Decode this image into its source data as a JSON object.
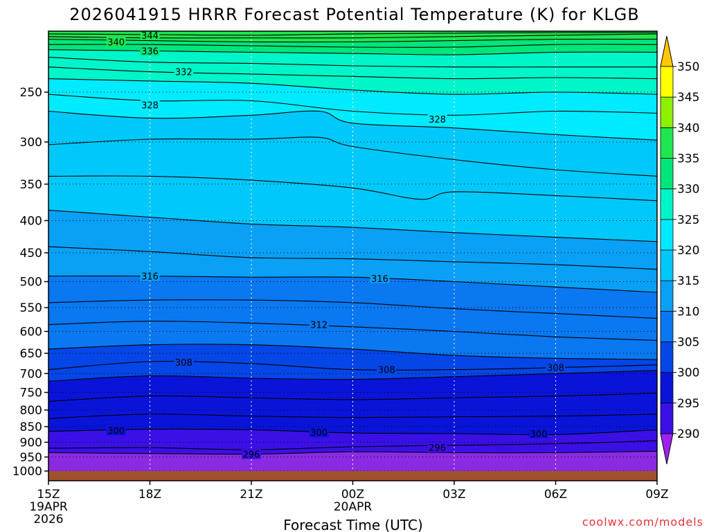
{
  "chart_data": {
    "type": "heatmap",
    "title": "2026041915 HRRR Forecast Potential Temperature (K) for KLGB",
    "xlabel": "Forecast Time (UTC)",
    "ylabel": "",
    "x_ticks": [
      {
        "hour": 0,
        "label": "15Z",
        "date": "19APR",
        "year": "2026"
      },
      {
        "hour": 3,
        "label": "18Z",
        "date": "",
        "year": ""
      },
      {
        "hour": 6,
        "label": "21Z",
        "date": "",
        "year": ""
      },
      {
        "hour": 9,
        "label": "00Z",
        "date": "20APR",
        "year": ""
      },
      {
        "hour": 12,
        "label": "03Z",
        "date": "",
        "year": ""
      },
      {
        "hour": 15,
        "label": "06Z",
        "date": "",
        "year": ""
      },
      {
        "hour": 18,
        "label": "09Z",
        "date": "",
        "year": ""
      }
    ],
    "xlim": [
      0,
      18
    ],
    "y_ticks": [
      {
        "p": 250,
        "label": "250"
      },
      {
        "p": 300,
        "label": "300"
      },
      {
        "p": 350,
        "label": "350"
      },
      {
        "p": 400,
        "label": "400"
      },
      {
        "p": 450,
        "label": "450"
      },
      {
        "p": 500,
        "label": "500"
      },
      {
        "p": 550,
        "label": "550"
      },
      {
        "p": 600,
        "label": "600"
      },
      {
        "p": 650,
        "label": "650"
      },
      {
        "p": 700,
        "label": "700"
      },
      {
        "p": 750,
        "label": "750"
      },
      {
        "p": 800,
        "label": "800"
      },
      {
        "p": 850,
        "label": "850"
      },
      {
        "p": 900,
        "label": "900"
      },
      {
        "p": 950,
        "label": "950"
      },
      {
        "p": 1000,
        "label": "1000"
      }
    ],
    "ylim": [
      200,
      1000
    ],
    "y_scale": "log (pressure, inverted)",
    "colorbar": {
      "levels": [
        290,
        295,
        300,
        305,
        310,
        315,
        320,
        325,
        330,
        335,
        340,
        345,
        350
      ],
      "colors": [
        "#8a2be2",
        "#3a10e6",
        "#0a14d8",
        "#0546e6",
        "#0a78f0",
        "#0aa0f5",
        "#00c8fa",
        "#00ebff",
        "#00f5c8",
        "#00e67a",
        "#1ee650",
        "#8cf000",
        "#ffff00"
      ],
      "over_color": "#ffc800",
      "under_color": "#a020f0"
    },
    "series": [
      {
        "value": 296,
        "points": [
          [
            0,
            935
          ],
          [
            3,
            938
          ],
          [
            6,
            940
          ],
          [
            9,
            932
          ],
          [
            12,
            935
          ],
          [
            15,
            935
          ],
          [
            18,
            930
          ]
        ]
      },
      {
        "value": 298,
        "points": [
          [
            0,
            920
          ],
          [
            3,
            918
          ],
          [
            6,
            925
          ],
          [
            9,
            915
          ],
          [
            12,
            910
          ],
          [
            15,
            905
          ],
          [
            18,
            895
          ]
        ]
      },
      {
        "value": 300,
        "points": [
          [
            0,
            865
          ],
          [
            3,
            858
          ],
          [
            6,
            860
          ],
          [
            9,
            870
          ],
          [
            12,
            872
          ],
          [
            15,
            875
          ],
          [
            18,
            860
          ]
        ]
      },
      {
        "value": 302,
        "points": [
          [
            0,
            825
          ],
          [
            3,
            812
          ],
          [
            6,
            818
          ],
          [
            9,
            822
          ],
          [
            12,
            820
          ],
          [
            15,
            818
          ],
          [
            18,
            812
          ]
        ]
      },
      {
        "value": 304,
        "points": [
          [
            0,
            775
          ],
          [
            3,
            760
          ],
          [
            6,
            765
          ],
          [
            9,
            770
          ],
          [
            12,
            765
          ],
          [
            15,
            760
          ],
          [
            18,
            752
          ]
        ]
      },
      {
        "value": 306,
        "points": [
          [
            0,
            720
          ],
          [
            3,
            706
          ],
          [
            6,
            712
          ],
          [
            9,
            715
          ],
          [
            12,
            708
          ],
          [
            15,
            700
          ],
          [
            18,
            692
          ]
        ]
      },
      {
        "value": 308,
        "points": [
          [
            0,
            690
          ],
          [
            3,
            670
          ],
          [
            6,
            675
          ],
          [
            9,
            690
          ],
          [
            12,
            690
          ],
          [
            15,
            685
          ],
          [
            18,
            678
          ]
        ]
      },
      {
        "value": 310,
        "points": [
          [
            0,
            640
          ],
          [
            3,
            630
          ],
          [
            6,
            630
          ],
          [
            9,
            640
          ],
          [
            12,
            655
          ],
          [
            15,
            662
          ],
          [
            18,
            665
          ]
        ]
      },
      {
        "value": 312,
        "points": [
          [
            0,
            585
          ],
          [
            3,
            578
          ],
          [
            6,
            582
          ],
          [
            9,
            590
          ],
          [
            12,
            600
          ],
          [
            15,
            612
          ],
          [
            18,
            620
          ]
        ]
      },
      {
        "value": 314,
        "points": [
          [
            0,
            540
          ],
          [
            3,
            535
          ],
          [
            6,
            535
          ],
          [
            9,
            540
          ],
          [
            12,
            552
          ],
          [
            15,
            562
          ],
          [
            18,
            572
          ]
        ]
      },
      {
        "value": 316,
        "points": [
          [
            0,
            490
          ],
          [
            3,
            490
          ],
          [
            6,
            492
          ],
          [
            9,
            492
          ],
          [
            12,
            500
          ],
          [
            15,
            510
          ],
          [
            18,
            520
          ]
        ]
      },
      {
        "value": 318,
        "points": [
          [
            0,
            440
          ],
          [
            3,
            448
          ],
          [
            6,
            458
          ],
          [
            9,
            460
          ],
          [
            12,
            465
          ],
          [
            15,
            470
          ],
          [
            18,
            478
          ]
        ]
      },
      {
        "value": 320,
        "points": [
          [
            0,
            385
          ],
          [
            3,
            395
          ],
          [
            6,
            405
          ],
          [
            9,
            410
          ],
          [
            12,
            418
          ],
          [
            15,
            425
          ],
          [
            18,
            432
          ]
        ]
      },
      {
        "value": 322,
        "points": [
          [
            0,
            340
          ],
          [
            3,
            340
          ],
          [
            6,
            345
          ],
          [
            9,
            355
          ],
          [
            11,
            370
          ],
          [
            12,
            360
          ],
          [
            15,
            365
          ],
          [
            18,
            372
          ]
        ]
      },
      {
        "value": 324,
        "points": [
          [
            0,
            303
          ],
          [
            3,
            297
          ],
          [
            6,
            297
          ],
          [
            8,
            295
          ],
          [
            9,
            305
          ],
          [
            12,
            320
          ],
          [
            15,
            332
          ],
          [
            18,
            340
          ]
        ]
      },
      {
        "value": 326,
        "points": [
          [
            0,
            268
          ],
          [
            3,
            275
          ],
          [
            6,
            272
          ],
          [
            8,
            268
          ],
          [
            9,
            280
          ],
          [
            12,
            285
          ],
          [
            15,
            292
          ],
          [
            18,
            298
          ]
        ]
      },
      {
        "value": 328,
        "points": [
          [
            0,
            252
          ],
          [
            3,
            258
          ],
          [
            6,
            258
          ],
          [
            9,
            268
          ],
          [
            12,
            272
          ],
          [
            15,
            268
          ],
          [
            18,
            270
          ]
        ]
      },
      {
        "value": 330,
        "points": [
          [
            0,
            238
          ],
          [
            3,
            240
          ],
          [
            6,
            242
          ],
          [
            9,
            248
          ],
          [
            12,
            252
          ],
          [
            15,
            250
          ],
          [
            18,
            252
          ]
        ]
      },
      {
        "value": 332,
        "points": [
          [
            0,
            228
          ],
          [
            3,
            232
          ],
          [
            6,
            234
          ],
          [
            9,
            236
          ],
          [
            12,
            238
          ],
          [
            15,
            237
          ],
          [
            18,
            238
          ]
        ]
      },
      {
        "value": 334,
        "points": [
          [
            0,
            220
          ],
          [
            3,
            224
          ],
          [
            6,
            225
          ],
          [
            9,
            227
          ],
          [
            12,
            228
          ],
          [
            15,
            228
          ],
          [
            18,
            228
          ]
        ]
      },
      {
        "value": 336,
        "points": [
          [
            0,
            214
          ],
          [
            3,
            215
          ],
          [
            6,
            216
          ],
          [
            9,
            217
          ],
          [
            12,
            218
          ],
          [
            15,
            216
          ],
          [
            18,
            216
          ]
        ]
      },
      {
        "value": 338,
        "points": [
          [
            0,
            210
          ],
          [
            3,
            210
          ],
          [
            6,
            211
          ],
          [
            9,
            212
          ],
          [
            12,
            212
          ],
          [
            15,
            210
          ],
          [
            18,
            210
          ]
        ]
      },
      {
        "value": 340,
        "points": [
          [
            0,
            206
          ],
          [
            3,
            207
          ],
          [
            6,
            208
          ],
          [
            9,
            208
          ],
          [
            12,
            207
          ],
          [
            15,
            206
          ],
          [
            18,
            206
          ]
        ]
      },
      {
        "value": 342,
        "points": [
          [
            0,
            204
          ],
          [
            3,
            205
          ],
          [
            6,
            205
          ],
          [
            9,
            205
          ],
          [
            12,
            204
          ],
          [
            15,
            203
          ],
          [
            18,
            202
          ]
        ]
      },
      {
        "value": 344,
        "points": [
          [
            0,
            202
          ],
          [
            3,
            202.5
          ],
          [
            6,
            203
          ],
          [
            9,
            202
          ],
          [
            12,
            201.5
          ],
          [
            15,
            201
          ],
          [
            18,
            201
          ]
        ]
      }
    ],
    "contour_labels": [
      {
        "text": "344",
        "hour": 3,
        "p": 203
      },
      {
        "text": "340",
        "hour": 2,
        "p": 208
      },
      {
        "text": "336",
        "hour": 3,
        "p": 215
      },
      {
        "text": "332",
        "hour": 4,
        "p": 232
      },
      {
        "text": "328",
        "hour": 3,
        "p": 262
      },
      {
        "text": "328",
        "hour": 11.5,
        "p": 276
      },
      {
        "text": "316",
        "hour": 3,
        "p": 490
      },
      {
        "text": "316",
        "hour": 9.8,
        "p": 494
      },
      {
        "text": "312",
        "hour": 8,
        "p": 585
      },
      {
        "text": "308",
        "hour": 4,
        "p": 672
      },
      {
        "text": "308",
        "hour": 10,
        "p": 690
      },
      {
        "text": "308",
        "hour": 15,
        "p": 685
      },
      {
        "text": "300",
        "hour": 2,
        "p": 862
      },
      {
        "text": "300",
        "hour": 8,
        "p": 868
      },
      {
        "text": "300",
        "hour": 14.5,
        "p": 872
      },
      {
        "text": "296",
        "hour": 6,
        "p": 940
      },
      {
        "text": "296",
        "hour": 11.5,
        "p": 918
      }
    ],
    "grid": true,
    "legend": "colorbar-right"
  },
  "credit": "coolwx.com/models"
}
